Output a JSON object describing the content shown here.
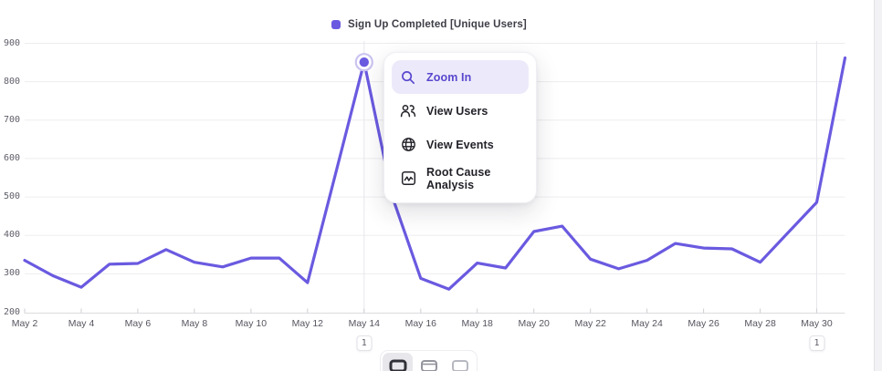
{
  "legend": {
    "label": "Sign Up Completed [Unique Users]"
  },
  "context_menu": {
    "items": [
      {
        "label": "Zoom In",
        "icon": "magnifier-icon",
        "highlighted": true
      },
      {
        "label": "View Users",
        "icon": "users-icon",
        "highlighted": false
      },
      {
        "label": "View Events",
        "icon": "globe-icon",
        "highlighted": false
      },
      {
        "label": "Root Cause Analysis",
        "icon": "chart-wave-icon",
        "highlighted": false
      }
    ]
  },
  "chart_data": {
    "type": "line",
    "title": "Sign Up Completed [Unique Users]",
    "x": [
      "May 2",
      "May 3",
      "May 4",
      "May 5",
      "May 6",
      "May 7",
      "May 8",
      "May 9",
      "May 10",
      "May 11",
      "May 12",
      "May 13",
      "May 14",
      "May 15",
      "May 16",
      "May 17",
      "May 18",
      "May 19",
      "May 20",
      "May 21",
      "May 22",
      "May 23",
      "May 24",
      "May 25",
      "May 26",
      "May 27",
      "May 28",
      "May 29",
      "May 30",
      "May 31"
    ],
    "x_label_step": 2,
    "series": [
      {
        "name": "Sign Up Completed [Unique Users]",
        "color": "#6A5AE0",
        "values": [
          335,
          295,
          265,
          325,
          327,
          363,
          330,
          318,
          341,
          341,
          277,
          563,
          851,
          500,
          288,
          260,
          328,
          315,
          410,
          424,
          338,
          313,
          335,
          379,
          367,
          365,
          330,
          408,
          486,
          862
        ]
      }
    ],
    "ylim": [
      200,
      900
    ],
    "yticks": [
      200,
      300,
      400,
      500,
      600,
      700,
      800,
      900
    ],
    "grid": "horizontal",
    "legend_position": "top",
    "selected_point": {
      "x": "May 14",
      "value": 851
    },
    "annotations": [
      {
        "x": "May 14",
        "label": "1"
      },
      {
        "x": "May 30",
        "label": "1"
      }
    ]
  },
  "footer": {
    "view_toggles": [
      {
        "name": "compact-view",
        "selected": true
      },
      {
        "name": "medium-view",
        "selected": false
      },
      {
        "name": "expanded-view",
        "selected": false
      }
    ]
  },
  "colors": {
    "accent": "#6A5AE0",
    "menu_highlight_bg": "#ECEAFA",
    "menu_highlight_text": "#5847CE",
    "menu_text": "#222229",
    "halo": "#CBC4F1",
    "grid": "#ededf0",
    "axis": "#dcdcdf"
  }
}
